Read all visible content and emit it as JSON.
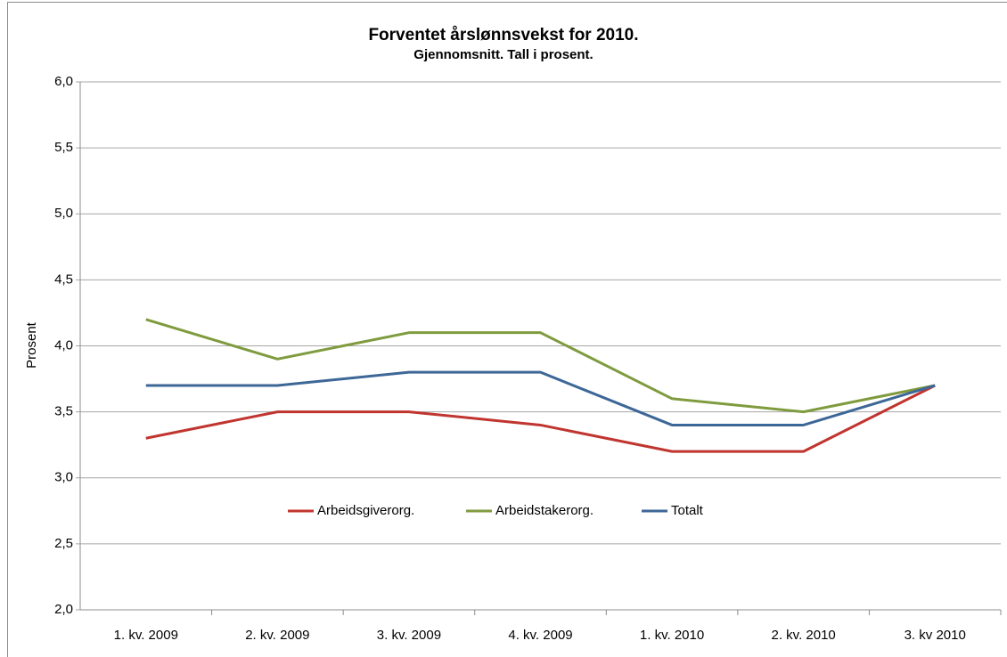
{
  "chart_data": {
    "type": "line",
    "title": "Forventet årslønnsvekst for 2010.",
    "subtitle": "Gjennomsnitt. Tall i prosent.",
    "y_label": "Prosent",
    "categories": [
      "1. kv. 2009",
      "2. kv. 2009",
      "3. kv. 2009",
      "4. kv. 2009",
      "1. kv. 2010",
      "2. kv. 2010",
      "3. kv 2010"
    ],
    "series": [
      {
        "name": "Arbeidsgiverorg.",
        "color": "#c0352f",
        "values": [
          3.3,
          3.5,
          3.5,
          3.4,
          3.2,
          3.2,
          3.7
        ]
      },
      {
        "name": "Arbeidstakerorg.",
        "color": "#7f9b3e",
        "values": [
          4.2,
          3.9,
          4.1,
          4.1,
          3.6,
          3.5,
          3.7
        ]
      },
      {
        "name": "Totalt",
        "color": "#3d6797",
        "values": [
          3.7,
          3.7,
          3.8,
          3.8,
          3.4,
          3.4,
          3.7
        ]
      }
    ],
    "ylim": [
      2,
      6
    ],
    "yticks": [
      {
        "value": 2,
        "label": "2,0"
      },
      {
        "value": 2.5,
        "label": "2,5"
      },
      {
        "value": 3,
        "label": "3,0"
      },
      {
        "value": 3.5,
        "label": "3,5"
      },
      {
        "value": 4,
        "label": "4,0"
      },
      {
        "value": 4.5,
        "label": "4,5"
      },
      {
        "value": 5,
        "label": "5,0"
      },
      {
        "value": 5.5,
        "label": "5,5"
      },
      {
        "value": 6,
        "label": "6,0"
      }
    ],
    "grid": true
  }
}
